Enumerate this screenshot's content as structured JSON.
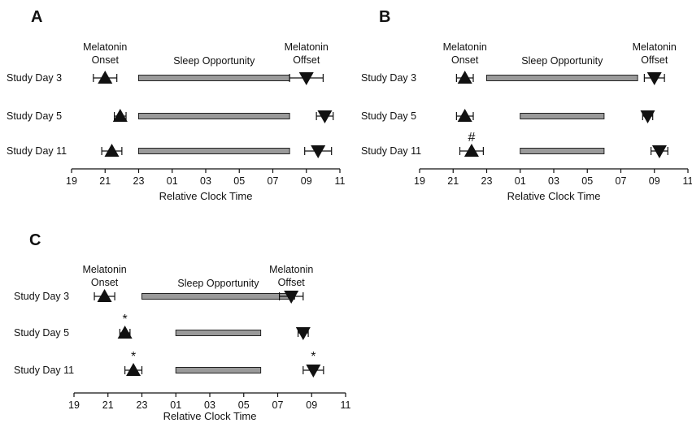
{
  "chart_data": [
    {
      "panel": "A",
      "type": "timeline",
      "xlabel": "Relative Clock Time",
      "xticks": [
        "19",
        "21",
        "23",
        "01",
        "03",
        "05",
        "07",
        "09",
        "11"
      ],
      "xlim": [
        19,
        35
      ],
      "labels": {
        "onset": "Melatonin\nOnset",
        "sleep": "Sleep Opportunity",
        "offset": "Melatonin\nOffset"
      },
      "rows": [
        {
          "name": "Study Day 3",
          "onset": 21.0,
          "onset_err": 0.7,
          "sleep_start": 23.0,
          "sleep_end": 32.0,
          "offset": 33.0,
          "offset_err": 1.0,
          "onset_mark": "",
          "offset_mark": ""
        },
        {
          "name": "Study Day 5",
          "onset": 21.9,
          "onset_err": 0.35,
          "sleep_start": 23.0,
          "sleep_end": 32.0,
          "offset": 34.1,
          "offset_err": 0.5,
          "onset_mark": "",
          "offset_mark": ""
        },
        {
          "name": "Study Day 11",
          "onset": 21.4,
          "onset_err": 0.6,
          "sleep_start": 23.0,
          "sleep_end": 32.0,
          "offset": 33.7,
          "offset_err": 0.8,
          "onset_mark": "",
          "offset_mark": ""
        }
      ]
    },
    {
      "panel": "B",
      "type": "timeline",
      "xlabel": "Relative Clock Time",
      "xticks": [
        "19",
        "21",
        "23",
        "01",
        "03",
        "05",
        "07",
        "09",
        "11"
      ],
      "xlim": [
        19,
        35
      ],
      "labels": {
        "onset": "Melatonin\nOnset",
        "sleep": "Sleep Opportunity",
        "offset": "Melatonin\nOffset"
      },
      "rows": [
        {
          "name": "Study Day 3",
          "onset": 21.7,
          "onset_err": 0.5,
          "sleep_start": 23.0,
          "sleep_end": 32.0,
          "offset": 33.0,
          "offset_err": 0.6,
          "onset_mark": "",
          "offset_mark": ""
        },
        {
          "name": "Study Day 5",
          "onset": 21.7,
          "onset_err": 0.5,
          "sleep_start": 25.0,
          "sleep_end": 30.0,
          "offset": 32.6,
          "offset_err": 0.3,
          "onset_mark": "",
          "offset_mark": ""
        },
        {
          "name": "Study Day 11",
          "onset": 22.1,
          "onset_err": 0.7,
          "sleep_start": 25.0,
          "sleep_end": 30.0,
          "offset": 33.3,
          "offset_err": 0.5,
          "onset_mark": "#",
          "offset_mark": ""
        }
      ]
    },
    {
      "panel": "C",
      "type": "timeline",
      "xlabel": "Relative Clock Time",
      "xticks": [
        "19",
        "21",
        "23",
        "01",
        "03",
        "05",
        "07",
        "09",
        "11"
      ],
      "xlim": [
        19,
        35
      ],
      "labels": {
        "onset": "Melatonin\nOnset",
        "sleep": "Sleep Opportunity",
        "offset": "Melatonin\nOffset"
      },
      "rows": [
        {
          "name": "Study Day 3",
          "onset": 20.8,
          "onset_err": 0.6,
          "sleep_start": 23.0,
          "sleep_end": 32.0,
          "offset": 31.8,
          "offset_err": 0.7,
          "onset_mark": "",
          "offset_mark": ""
        },
        {
          "name": "Study Day 5",
          "onset": 22.0,
          "onset_err": 0.3,
          "sleep_start": 25.0,
          "sleep_end": 30.0,
          "offset": 32.5,
          "offset_err": 0.3,
          "onset_mark": "*",
          "offset_mark": ""
        },
        {
          "name": "Study Day 11",
          "onset": 22.5,
          "onset_err": 0.5,
          "sleep_start": 25.0,
          "sleep_end": 30.0,
          "offset": 33.1,
          "offset_err": 0.6,
          "onset_mark": "*",
          "offset_mark": "*"
        }
      ]
    }
  ]
}
